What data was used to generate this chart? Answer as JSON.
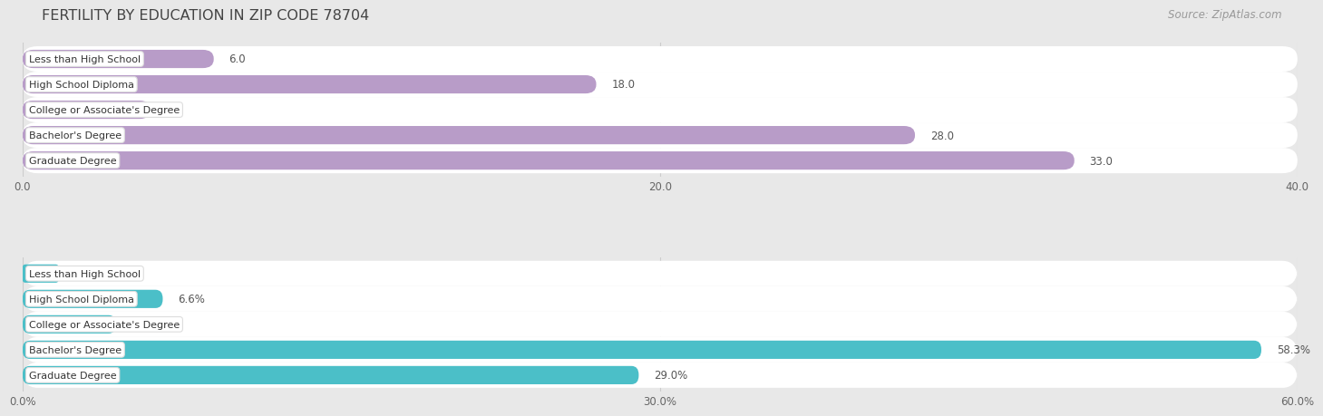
{
  "title": "FERTILITY BY EDUCATION IN ZIP CODE 78704",
  "source": "Source: ZipAtlas.com",
  "background_color": "#e8e8e8",
  "row_bg_color": "#f5f5f5",
  "chart1": {
    "categories": [
      "Less than High School",
      "High School Diploma",
      "College or Associate's Degree",
      "Bachelor's Degree",
      "Graduate Degree"
    ],
    "values": [
      6.0,
      18.0,
      4.0,
      28.0,
      33.0
    ],
    "bar_color": "#b89cc8",
    "xlim": [
      0,
      40
    ],
    "xticks": [
      0.0,
      20.0,
      40.0
    ],
    "xticklabels": [
      "0.0",
      "20.0",
      "40.0"
    ]
  },
  "chart2": {
    "categories": [
      "Less than High School",
      "High School Diploma",
      "College or Associate's Degree",
      "Bachelor's Degree",
      "Graduate Degree"
    ],
    "values": [
      1.7,
      6.6,
      4.4,
      58.3,
      29.0
    ],
    "value_labels": [
      "1.7%",
      "6.6%",
      "4.4%",
      "58.3%",
      "29.0%"
    ],
    "bar_color": "#4bbfc8",
    "xlim": [
      0,
      60
    ],
    "xticks": [
      0.0,
      30.0,
      60.0
    ],
    "xticklabels": [
      "0.0%",
      "30.0%",
      "60.0%"
    ]
  },
  "title_fontsize": 11.5,
  "label_fontsize": 8.0,
  "value_fontsize": 8.5,
  "tick_fontsize": 8.5,
  "source_fontsize": 8.5
}
